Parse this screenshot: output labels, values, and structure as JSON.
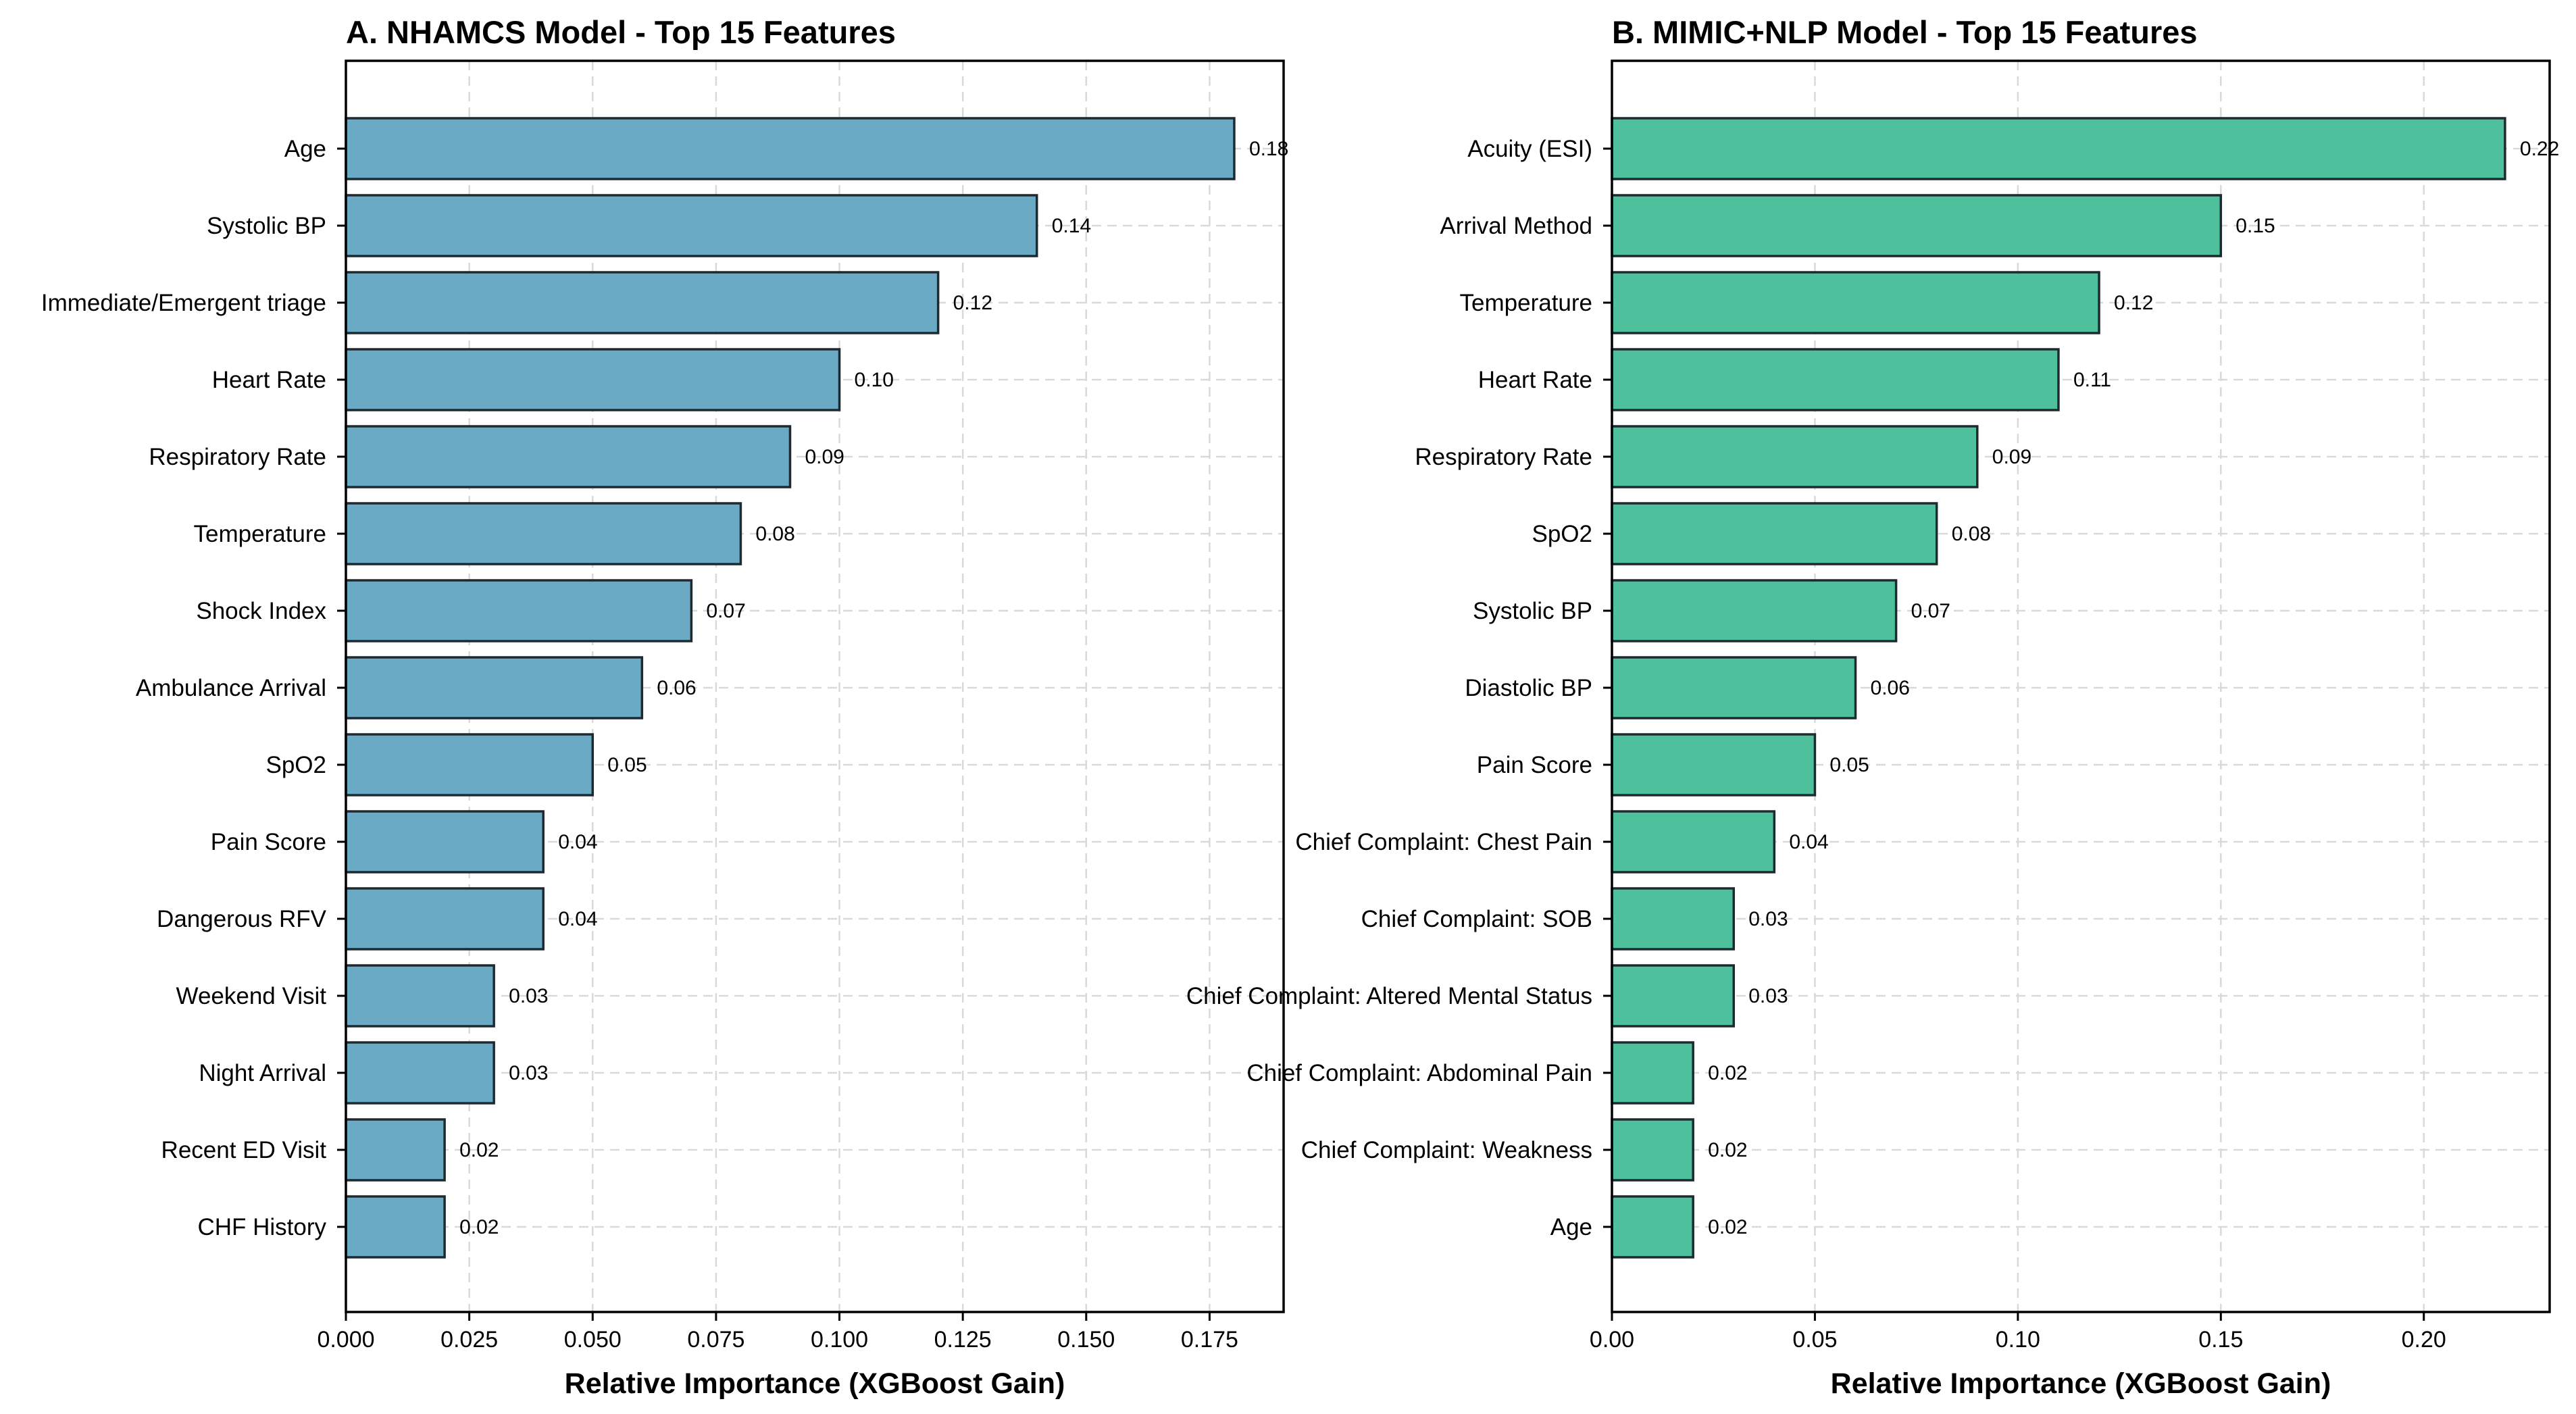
{
  "chart_data": [
    {
      "type": "bar",
      "orientation": "horizontal",
      "title": "A. NHAMCS Model - Top 15 Features",
      "xlabel": "Relative Importance (XGBoost Gain)",
      "ylabel": "",
      "xlim": [
        0,
        0.19
      ],
      "xticks": [
        0.0,
        0.025,
        0.05,
        0.075,
        0.1,
        0.125,
        0.15,
        0.175
      ],
      "xtick_labels": [
        "0.000",
        "0.025",
        "0.050",
        "0.075",
        "0.100",
        "0.125",
        "0.150",
        "0.175"
      ],
      "grid": true,
      "bar_color": "#6aaac5",
      "categories": [
        "Age",
        "Systolic BP",
        "Immediate/Emergent triage",
        "Heart Rate",
        "Respiratory Rate",
        "Temperature",
        "Shock Index",
        "Ambulance Arrival",
        "SpO2",
        "Pain Score",
        "Dangerous RFV",
        "Weekend Visit",
        "Night Arrival",
        "Recent ED Visit",
        "CHF History"
      ],
      "values": [
        0.18,
        0.14,
        0.12,
        0.1,
        0.09,
        0.08,
        0.07,
        0.06,
        0.05,
        0.04,
        0.04,
        0.03,
        0.03,
        0.02,
        0.02
      ],
      "value_labels": [
        "0.18",
        "0.14",
        "0.12",
        "0.10",
        "0.09",
        "0.08",
        "0.07",
        "0.06",
        "0.05",
        "0.04",
        "0.04",
        "0.03",
        "0.03",
        "0.02",
        "0.02"
      ]
    },
    {
      "type": "bar",
      "orientation": "horizontal",
      "title": "B. MIMIC+NLP Model - Top 15 Features",
      "xlabel": "Relative Importance (XGBoost Gain)",
      "ylabel": "",
      "xlim": [
        0,
        0.231
      ],
      "xticks": [
        0.0,
        0.05,
        0.1,
        0.15,
        0.2
      ],
      "xtick_labels": [
        "0.00",
        "0.05",
        "0.10",
        "0.15",
        "0.20"
      ],
      "grid": true,
      "bar_color": "#4fc09c",
      "categories": [
        "Acuity (ESI)",
        "Arrival Method",
        "Temperature",
        "Heart Rate",
        "Respiratory Rate",
        "SpO2",
        "Systolic BP",
        "Diastolic BP",
        "Pain Score",
        "Chief Complaint: Chest Pain",
        "Chief Complaint: SOB",
        "Chief Complaint: Altered Mental Status",
        "Chief Complaint: Abdominal Pain",
        "Chief Complaint: Weakness",
        "Age"
      ],
      "values": [
        0.22,
        0.15,
        0.12,
        0.11,
        0.09,
        0.08,
        0.07,
        0.06,
        0.05,
        0.04,
        0.03,
        0.03,
        0.02,
        0.02,
        0.02
      ],
      "value_labels": [
        "0.22",
        "0.15",
        "0.12",
        "0.11",
        "0.09",
        "0.08",
        "0.07",
        "0.06",
        "0.05",
        "0.04",
        "0.03",
        "0.03",
        "0.02",
        "0.02",
        "0.02"
      ]
    }
  ]
}
